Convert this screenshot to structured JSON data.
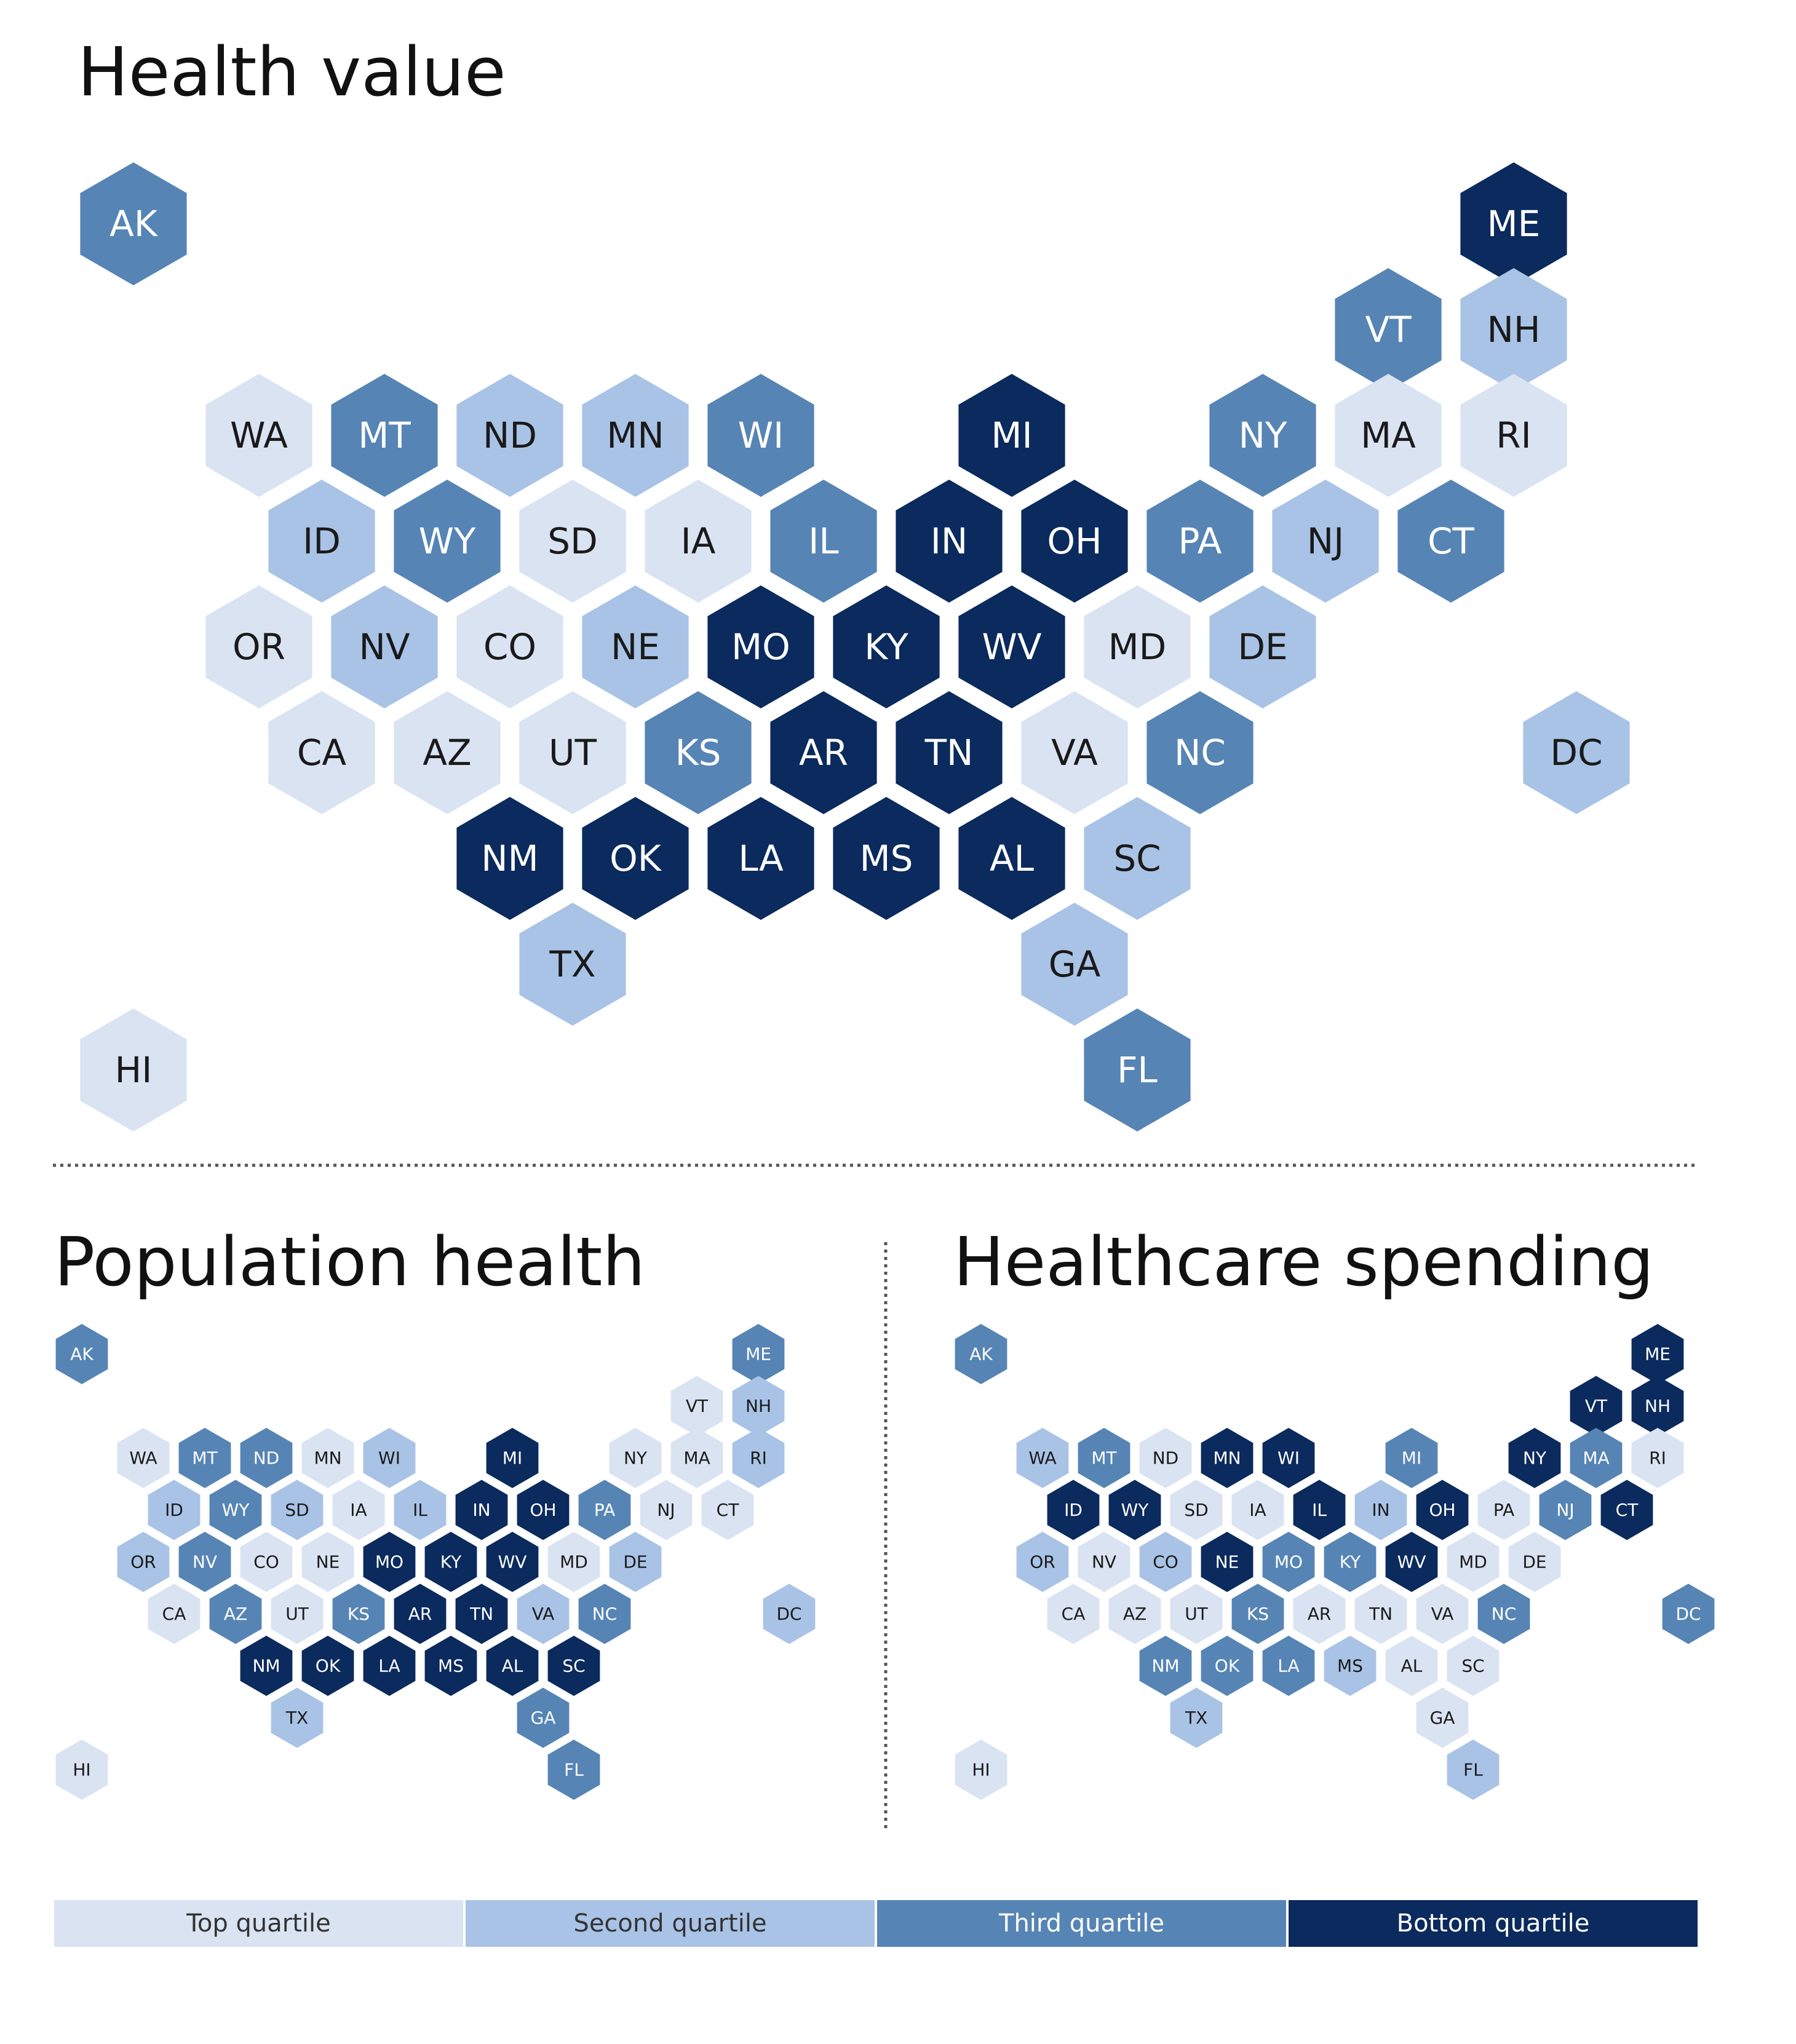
{
  "colors": {
    "top": "#d9e3f2",
    "second": "#a9c3e6",
    "third": "#5684b5",
    "bottom": "#0b2a5d",
    "text_light": "#ffffff",
    "text_dark": "#1a1a1a"
  },
  "legend": [
    {
      "key": "top",
      "label": "Top quartile"
    },
    {
      "key": "second",
      "label": "Second quartile"
    },
    {
      "key": "third",
      "label": "Third quartile"
    },
    {
      "key": "bottom",
      "label": "Bottom quartile"
    }
  ],
  "maps": [
    {
      "id": "health-value",
      "title": "Health value",
      "states": {
        "AK": "third",
        "HI": "top",
        "ME": "bottom",
        "VT": "third",
        "NH": "second",
        "WA": "top",
        "MT": "third",
        "ND": "second",
        "MN": "second",
        "WI": "third",
        "MI": "bottom",
        "NY": "third",
        "MA": "top",
        "RI": "top",
        "ID": "second",
        "WY": "third",
        "SD": "top",
        "IA": "top",
        "IL": "third",
        "IN": "bottom",
        "OH": "bottom",
        "PA": "third",
        "NJ": "second",
        "CT": "third",
        "OR": "top",
        "NV": "second",
        "CO": "top",
        "NE": "second",
        "MO": "bottom",
        "KY": "bottom",
        "WV": "bottom",
        "MD": "top",
        "DE": "second",
        "CA": "top",
        "AZ": "top",
        "UT": "top",
        "KS": "third",
        "AR": "bottom",
        "TN": "bottom",
        "VA": "top",
        "NC": "third",
        "DC": "second",
        "NM": "bottom",
        "OK": "bottom",
        "LA": "bottom",
        "MS": "bottom",
        "AL": "bottom",
        "SC": "second",
        "TX": "second",
        "GA": "second",
        "FL": "third"
      }
    },
    {
      "id": "population-health",
      "title": "Population health",
      "states": {
        "AK": "third",
        "HI": "top",
        "ME": "third",
        "VT": "top",
        "NH": "second",
        "WA": "top",
        "MT": "third",
        "ND": "third",
        "MN": "top",
        "WI": "second",
        "MI": "bottom",
        "NY": "top",
        "MA": "top",
        "RI": "second",
        "ID": "second",
        "WY": "third",
        "SD": "second",
        "IA": "top",
        "IL": "second",
        "IN": "bottom",
        "OH": "bottom",
        "PA": "third",
        "NJ": "top",
        "CT": "top",
        "OR": "second",
        "NV": "third",
        "CO": "top",
        "NE": "top",
        "MO": "bottom",
        "KY": "bottom",
        "WV": "bottom",
        "MD": "top",
        "DE": "second",
        "CA": "top",
        "AZ": "third",
        "UT": "top",
        "KS": "third",
        "AR": "bottom",
        "TN": "bottom",
        "VA": "second",
        "NC": "third",
        "DC": "second",
        "NM": "bottom",
        "OK": "bottom",
        "LA": "bottom",
        "MS": "bottom",
        "AL": "bottom",
        "SC": "bottom",
        "TX": "second",
        "GA": "third",
        "FL": "third"
      }
    },
    {
      "id": "healthcare-spending",
      "title": "Healthcare spending",
      "states": {
        "AK": "third",
        "HI": "top",
        "ME": "bottom",
        "VT": "bottom",
        "NH": "bottom",
        "WA": "second",
        "MT": "third",
        "ND": "top",
        "MN": "bottom",
        "WI": "bottom",
        "MI": "third",
        "NY": "bottom",
        "MA": "third",
        "RI": "top",
        "ID": "bottom",
        "WY": "bottom",
        "SD": "top",
        "IA": "top",
        "IL": "bottom",
        "IN": "second",
        "OH": "bottom",
        "PA": "top",
        "NJ": "third",
        "CT": "bottom",
        "OR": "second",
        "NV": "top",
        "CO": "second",
        "NE": "bottom",
        "MO": "third",
        "KY": "third",
        "WV": "bottom",
        "MD": "top",
        "DE": "top",
        "CA": "top",
        "AZ": "top",
        "UT": "top",
        "KS": "third",
        "AR": "top",
        "TN": "top",
        "VA": "top",
        "NC": "third",
        "DC": "third",
        "NM": "third",
        "OK": "third",
        "LA": "third",
        "MS": "second",
        "AL": "top",
        "SC": "top",
        "TX": "second",
        "GA": "top",
        "FL": "second"
      }
    }
  ]
}
